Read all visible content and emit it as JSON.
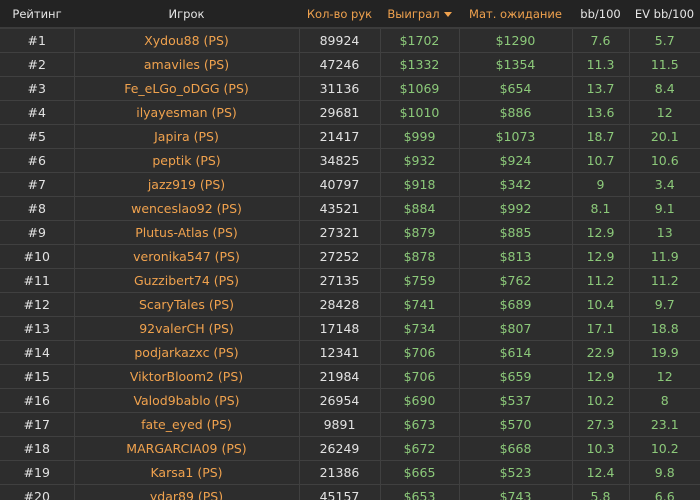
{
  "headers": {
    "rank": "Рейтинг",
    "player": "Игрок",
    "hands": "Кол-во рук",
    "won": "Выиграл",
    "ev": "Мат. ожидание",
    "bb100": "bb/100",
    "evbb100": "EV bb/100"
  },
  "sort": {
    "column": "won",
    "direction": "desc",
    "icon": "caret-down-icon"
  },
  "colors": {
    "accent": "#f0a24e",
    "positive": "#8cc97a"
  },
  "rows": [
    {
      "rank": "#1",
      "player": "Xydou88 (PS)",
      "hands": "89924",
      "won": "$1702",
      "ev": "$1290",
      "bb100": "7.6",
      "evbb100": "5.7"
    },
    {
      "rank": "#2",
      "player": "amaviles (PS)",
      "hands": "47246",
      "won": "$1332",
      "ev": "$1354",
      "bb100": "11.3",
      "evbb100": "11.5"
    },
    {
      "rank": "#3",
      "player": "Fe_eLGo_oDGG (PS)",
      "hands": "31136",
      "won": "$1069",
      "ev": "$654",
      "bb100": "13.7",
      "evbb100": "8.4"
    },
    {
      "rank": "#4",
      "player": "ilyayesman (PS)",
      "hands": "29681",
      "won": "$1010",
      "ev": "$886",
      "bb100": "13.6",
      "evbb100": "12"
    },
    {
      "rank": "#5",
      "player": "Japira (PS)",
      "hands": "21417",
      "won": "$999",
      "ev": "$1073",
      "bb100": "18.7",
      "evbb100": "20.1"
    },
    {
      "rank": "#6",
      "player": "peptik (PS)",
      "hands": "34825",
      "won": "$932",
      "ev": "$924",
      "bb100": "10.7",
      "evbb100": "10.6"
    },
    {
      "rank": "#7",
      "player": "jazz919 (PS)",
      "hands": "40797",
      "won": "$918",
      "ev": "$342",
      "bb100": "9",
      "evbb100": "3.4"
    },
    {
      "rank": "#8",
      "player": "wenceslao92 (PS)",
      "hands": "43521",
      "won": "$884",
      "ev": "$992",
      "bb100": "8.1",
      "evbb100": "9.1"
    },
    {
      "rank": "#9",
      "player": "Plutus-Atlas (PS)",
      "hands": "27321",
      "won": "$879",
      "ev": "$885",
      "bb100": "12.9",
      "evbb100": "13"
    },
    {
      "rank": "#10",
      "player": "veronika547 (PS)",
      "hands": "27252",
      "won": "$878",
      "ev": "$813",
      "bb100": "12.9",
      "evbb100": "11.9"
    },
    {
      "rank": "#11",
      "player": "Guzzibert74 (PS)",
      "hands": "27135",
      "won": "$759",
      "ev": "$762",
      "bb100": "11.2",
      "evbb100": "11.2"
    },
    {
      "rank": "#12",
      "player": "ScaryTales (PS)",
      "hands": "28428",
      "won": "$741",
      "ev": "$689",
      "bb100": "10.4",
      "evbb100": "9.7"
    },
    {
      "rank": "#13",
      "player": "92valerCH (PS)",
      "hands": "17148",
      "won": "$734",
      "ev": "$807",
      "bb100": "17.1",
      "evbb100": "18.8"
    },
    {
      "rank": "#14",
      "player": "podjarkazxc (PS)",
      "hands": "12341",
      "won": "$706",
      "ev": "$614",
      "bb100": "22.9",
      "evbb100": "19.9"
    },
    {
      "rank": "#15",
      "player": "ViktorBloom2 (PS)",
      "hands": "21984",
      "won": "$706",
      "ev": "$659",
      "bb100": "12.9",
      "evbb100": "12"
    },
    {
      "rank": "#16",
      "player": "Valod9bablo (PS)",
      "hands": "26954",
      "won": "$690",
      "ev": "$537",
      "bb100": "10.2",
      "evbb100": "8"
    },
    {
      "rank": "#17",
      "player": "fate_eyed (PS)",
      "hands": "9891",
      "won": "$673",
      "ev": "$570",
      "bb100": "27.3",
      "evbb100": "23.1"
    },
    {
      "rank": "#18",
      "player": "MARGARCIA09 (PS)",
      "hands": "26249",
      "won": "$672",
      "ev": "$668",
      "bb100": "10.3",
      "evbb100": "10.2"
    },
    {
      "rank": "#19",
      "player": "Karsa1 (PS)",
      "hands": "21386",
      "won": "$665",
      "ev": "$523",
      "bb100": "12.4",
      "evbb100": "9.8"
    },
    {
      "rank": "#20",
      "player": "ydar89 (PS)",
      "hands": "45157",
      "won": "$653",
      "ev": "$743",
      "bb100": "5.8",
      "evbb100": "6.6"
    }
  ]
}
